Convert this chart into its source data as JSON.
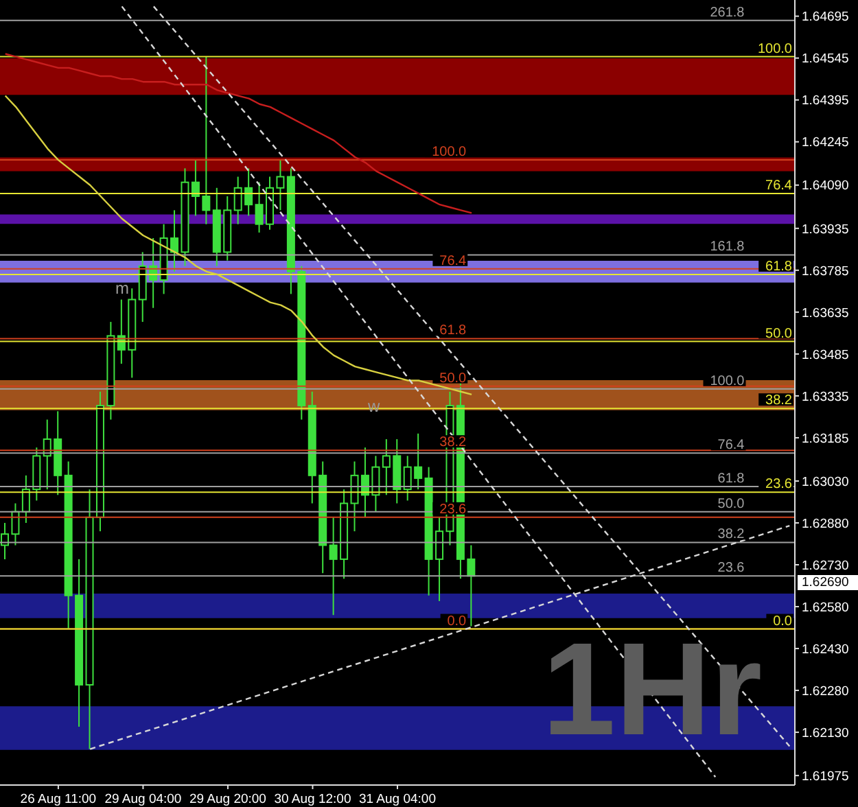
{
  "chart_data": {
    "type": "candlestick",
    "color": "#3ee03e",
    "categories": [
      null,
      null,
      null,
      null,
      null,
      "26 Aug 11:00",
      null,
      null,
      null,
      null,
      null,
      null,
      null,
      "29 Aug 04:00",
      null,
      null,
      null,
      null,
      null,
      null,
      null,
      "29 Aug 20:00",
      null,
      null,
      null,
      null,
      null,
      null,
      null,
      "30 Aug 12:00",
      null,
      null,
      null,
      null,
      null,
      null,
      null,
      "31 Aug 04:00",
      null,
      null,
      null,
      null,
      null,
      null,
      null,
      null,
      null,
      null,
      null,
      null,
      null,
      null,
      null,
      null,
      null,
      null,
      null,
      null,
      null,
      null,
      null,
      null,
      null,
      null,
      null,
      null,
      null,
      null,
      null,
      null,
      null,
      null,
      null,
      null,
      null
    ],
    "ohlc": [
      [
        1.628,
        1.6288,
        1.6275,
        1.6284
      ],
      [
        1.6284,
        1.6295,
        1.628,
        1.6292
      ],
      [
        1.6292,
        1.6305,
        1.6288,
        1.63
      ],
      [
        1.63,
        1.6315,
        1.6296,
        1.6312
      ],
      [
        1.6312,
        1.6325,
        1.63,
        1.6318
      ],
      [
        1.6318,
        1.6328,
        1.6298,
        1.6305
      ],
      [
        1.6305,
        1.631,
        1.625,
        1.6262
      ],
      [
        1.6262,
        1.6275,
        1.6215,
        1.623
      ],
      [
        1.623,
        1.63,
        1.6207,
        1.629
      ],
      [
        1.629,
        1.6335,
        1.6285,
        1.633
      ],
      [
        1.633,
        1.636,
        1.6325,
        1.6355
      ],
      [
        1.6355,
        1.6368,
        1.6345,
        1.635
      ],
      [
        1.635,
        1.6372,
        1.634,
        1.6368
      ],
      [
        1.6368,
        1.6385,
        1.636,
        1.638
      ],
      [
        1.638,
        1.639,
        1.6365,
        1.6375
      ],
      [
        1.6375,
        1.6395,
        1.637,
        1.639
      ],
      [
        1.639,
        1.64,
        1.6378,
        1.6385
      ],
      [
        1.6385,
        1.6415,
        1.638,
        1.641
      ],
      [
        1.641,
        1.6418,
        1.6398,
        1.6405
      ],
      [
        1.6405,
        1.6455,
        1.6395,
        1.64
      ],
      [
        1.64,
        1.6408,
        1.638,
        1.6385
      ],
      [
        1.6385,
        1.6405,
        1.6382,
        1.64
      ],
      [
        1.64,
        1.6412,
        1.6395,
        1.6408
      ],
      [
        1.6408,
        1.6415,
        1.6398,
        1.6402
      ],
      [
        1.6402,
        1.641,
        1.6392,
        1.6395
      ],
      [
        1.6395,
        1.6412,
        1.6393,
        1.6408
      ],
      [
        1.6408,
        1.6418,
        1.64,
        1.6412
      ],
      [
        1.6412,
        1.6415,
        1.637,
        1.6378
      ],
      [
        1.6378,
        1.638,
        1.6325,
        1.633
      ],
      [
        1.633,
        1.6335,
        1.6295,
        1.6305
      ],
      [
        1.6305,
        1.631,
        1.627,
        1.628
      ],
      [
        1.628,
        1.629,
        1.6255,
        1.6275
      ],
      [
        1.6275,
        1.63,
        1.6268,
        1.6295
      ],
      [
        1.6295,
        1.631,
        1.6285,
        1.6305
      ],
      [
        1.6305,
        1.6315,
        1.629,
        1.6298
      ],
      [
        1.6298,
        1.6312,
        1.6292,
        1.6308
      ],
      [
        1.6308,
        1.6318,
        1.6298,
        1.6312
      ],
      [
        1.6312,
        1.6318,
        1.6295,
        1.63
      ],
      [
        1.63,
        1.6312,
        1.6296,
        1.6308
      ],
      [
        1.6308,
        1.632,
        1.63,
        1.6304
      ],
      [
        1.6304,
        1.6308,
        1.6262,
        1.6275
      ],
      [
        1.6275,
        1.629,
        1.626,
        1.6285
      ],
      [
        1.6285,
        1.6335,
        1.628,
        1.633
      ],
      [
        1.633,
        1.6338,
        1.6268,
        1.6275
      ],
      [
        1.6275,
        1.628,
        1.6251,
        1.6269
      ],
      null,
      null,
      null,
      null,
      null,
      null,
      null,
      null,
      null,
      null,
      null,
      null,
      null,
      null,
      null,
      null,
      null,
      null,
      null,
      null,
      null,
      null,
      null,
      null,
      null,
      null,
      null,
      null,
      null,
      null
    ],
    "series": [
      {
        "type": "line",
        "color": "#c81e1e",
        "values": [
          1.6456,
          1.6455,
          1.6454,
          1.6453,
          1.6452,
          1.6451,
          1.6451,
          1.645,
          1.6449,
          1.6448,
          1.6448,
          1.6447,
          1.6447,
          1.6446,
          1.6446,
          1.6446,
          1.6445,
          1.6445,
          1.6445,
          1.6445,
          1.6443,
          1.6442,
          1.6441,
          1.644,
          1.6438,
          1.6437,
          1.6435,
          1.6433,
          1.6431,
          1.6429,
          1.6427,
          1.6425,
          1.6422,
          1.6419,
          1.6417,
          1.6414,
          1.6412,
          1.641,
          1.6408,
          1.6406,
          1.6404,
          1.6402,
          1.6401,
          1.64,
          1.6399,
          null,
          null,
          null,
          null,
          null,
          null,
          null,
          null,
          null,
          null,
          null,
          null,
          null,
          null,
          null,
          null,
          null,
          null,
          null,
          null,
          null,
          null,
          null,
          null,
          null,
          null,
          null,
          null,
          null,
          null
        ]
      },
      {
        "type": "line",
        "color": "#d8d040",
        "values": [
          1.6441,
          1.6437,
          1.6432,
          1.6427,
          1.6422,
          1.6418,
          1.6415,
          1.6412,
          1.6409,
          1.6405,
          1.6401,
          1.6397,
          1.6394,
          1.6391,
          1.6389,
          1.6387,
          1.6385,
          1.6383,
          1.638,
          1.6378,
          1.6377,
          1.6375,
          1.6373,
          1.6371,
          1.6369,
          1.6367,
          1.6366,
          1.6364,
          1.636,
          1.6355,
          1.6351,
          1.6348,
          1.6346,
          1.6344,
          1.6343,
          1.6342,
          1.6341,
          1.634,
          1.6339,
          1.6339,
          1.6338,
          1.6337,
          1.6336,
          1.6335,
          1.6334,
          null,
          null,
          null,
          null,
          null,
          null,
          null,
          null,
          null,
          null,
          null,
          null,
          null,
          null,
          null,
          null,
          null,
          null,
          null,
          null,
          null,
          null,
          null,
          null,
          null,
          null,
          null,
          null,
          null,
          null
        ]
      },
      {
        "type": "line",
        "color": "#d8d8d8",
        "line_style": "dashed",
        "values": [
          null,
          null,
          null,
          null,
          null,
          null,
          null,
          null,
          1.6207,
          null,
          null,
          null,
          null,
          null,
          null,
          null,
          null,
          null,
          null,
          null,
          null,
          null,
          null,
          null,
          null,
          null,
          null,
          null,
          null,
          null,
          null,
          null,
          null,
          null,
          null,
          null,
          null,
          null,
          null,
          null,
          null,
          null,
          null,
          null,
          null,
          null,
          null,
          null,
          null,
          null,
          null,
          null,
          null,
          null,
          null,
          null,
          null,
          null,
          null,
          null,
          null,
          null,
          null,
          null,
          null,
          null,
          null,
          null,
          null,
          null,
          null,
          null,
          null,
          null,
          1.6287
        ]
      },
      {
        "type": "line",
        "color": "#d8d8d8",
        "line_style": "dashed",
        "values": [
          null,
          null,
          null,
          null,
          null,
          null,
          null,
          null,
          null,
          null,
          null,
          1.6473,
          null,
          null,
          null,
          null,
          null,
          null,
          null,
          null,
          null,
          null,
          null,
          null,
          null,
          null,
          null,
          null,
          null,
          null,
          null,
          null,
          null,
          null,
          null,
          null,
          null,
          null,
          null,
          null,
          null,
          null,
          null,
          null,
          null,
          null,
          null,
          null,
          null,
          null,
          null,
          null,
          null,
          null,
          null,
          null,
          null,
          null,
          null,
          null,
          null,
          null,
          null,
          null,
          null,
          null,
          null,
          1.6197,
          null,
          null,
          null,
          null,
          null,
          null,
          null
        ]
      },
      {
        "type": "line",
        "color": "#d8d8d8",
        "line_style": "dashed",
        "values": [
          null,
          null,
          null,
          null,
          null,
          null,
          null,
          null,
          null,
          null,
          null,
          null,
          null,
          null,
          1.6473,
          null,
          null,
          null,
          null,
          null,
          null,
          null,
          null,
          null,
          null,
          null,
          null,
          null,
          null,
          null,
          null,
          null,
          null,
          null,
          null,
          null,
          null,
          null,
          null,
          null,
          null,
          null,
          null,
          null,
          null,
          null,
          null,
          null,
          null,
          null,
          null,
          null,
          null,
          null,
          null,
          null,
          null,
          null,
          null,
          null,
          null,
          null,
          null,
          null,
          null,
          null,
          null,
          null,
          null,
          null,
          null,
          null,
          null,
          null,
          1.6208
        ]
      }
    ],
    "ylim": [
      1.61941,
      1.64753
    ],
    "yticks": [
      1.64695,
      1.64545,
      1.64395,
      1.64245,
      {
        "value": 1.6409,
        "label": "1.64090"
      },
      1.63935,
      1.63785,
      1.63635,
      1.63485,
      1.63335,
      1.63185,
      {
        "value": 1.6303,
        "label": "1.63030"
      },
      {
        "value": 1.6288,
        "label": "1.62880"
      },
      {
        "value": 1.6273,
        "label": "1.62730"
      },
      {
        "value": 1.6258,
        "label": "1.62580"
      },
      {
        "value": 1.6243,
        "label": "1.62430"
      },
      {
        "value": 1.6228,
        "label": "1.62280"
      },
      {
        "value": 1.6213,
        "label": "1.62130"
      },
      1.61975
    ],
    "bands": [
      {
        "axis": "y",
        "from": 1.64413,
        "to": 1.64544,
        "color": "#8b0000"
      },
      {
        "axis": "y",
        "from": 1.6414,
        "to": 1.64189,
        "color": "#8b0000"
      },
      {
        "axis": "y",
        "from": 1.63951,
        "to": 1.63985,
        "color": "#5b12a8"
      },
      {
        "axis": "y",
        "from": 1.63741,
        "to": 1.63819,
        "color": "#7d6fe0"
      },
      {
        "axis": "y",
        "from": 1.63337,
        "to": 1.63391,
        "color": "#a0521c"
      },
      {
        "axis": "y",
        "from": 1.63284,
        "to": 1.63337,
        "color": "#a0521c"
      },
      {
        "axis": "y",
        "from": 1.62539,
        "to": 1.62627,
        "color": "#1c1c8c"
      },
      {
        "axis": "y",
        "from": 1.62067,
        "to": 1.62223,
        "color": "#1c1c8c"
      }
    ],
    "ref_lines": [
      {
        "axis": "y",
        "value": 1.6468,
        "color": "#a0a0a0"
      },
      {
        "axis": "y",
        "value": 1.6455,
        "color": "#e6e632"
      },
      {
        "axis": "y",
        "value": 1.6418,
        "color": "#d2411e"
      },
      {
        "axis": "y",
        "value": 1.6406,
        "color": "#e6e632"
      },
      {
        "axis": "y",
        "value": 1.6384,
        "color": "#a0a0a0"
      },
      {
        "axis": "y",
        "value": 1.6379,
        "color": "#d2411e"
      },
      {
        "axis": "y",
        "value": 1.6377,
        "color": "#e6e632"
      },
      {
        "axis": "y",
        "value": 1.6354,
        "color": "#d2411e"
      },
      {
        "axis": "y",
        "value": 1.6353,
        "color": "#e6e632"
      },
      {
        "axis": "y",
        "value": 1.6337,
        "color": "#d2411e"
      },
      {
        "axis": "y",
        "value": 1.6336,
        "color": "#a0a0a0"
      },
      {
        "axis": "y",
        "value": 1.6329,
        "color": "#e6e632"
      },
      {
        "axis": "y",
        "value": 1.6314,
        "color": "#d2411e"
      },
      {
        "axis": "y",
        "value": 1.6313,
        "color": "#a0a0a0"
      },
      {
        "axis": "y",
        "value": 1.6301,
        "color": "#a0a0a0"
      },
      {
        "axis": "y",
        "value": 1.6299,
        "color": "#e6e632"
      },
      {
        "axis": "y",
        "value": 1.6292,
        "color": "#a0a0a0"
      },
      {
        "axis": "y",
        "value": 1.629,
        "color": "#d2411e"
      },
      {
        "axis": "y",
        "value": 1.6281,
        "color": "#a0a0a0"
      },
      {
        "axis": "y",
        "value": 1.6269,
        "color": "#a0a0a0"
      },
      {
        "axis": "y",
        "value": 1.625,
        "color": "#d2411e"
      },
      {
        "axis": "y",
        "value": 1.625,
        "color": "#e6e632"
      }
    ],
    "annotations": [
      {
        "text": "261.8",
        "y": 1.6468
      },
      {
        "text": "100.0",
        "y": 1.6455
      },
      {
        "text": "100.0",
        "y": 1.6418
      },
      {
        "text": "76.4",
        "y": 1.6406
      },
      {
        "text": "161.8",
        "y": 1.6384
      },
      {
        "text": "76.4",
        "y": 1.6379
      },
      {
        "text": "61.8",
        "y": 1.6377
      },
      {
        "text": "61.8",
        "y": 1.6354
      },
      {
        "text": "50.0",
        "y": 1.6353
      },
      {
        "text": "50.0",
        "y": 1.6337
      },
      {
        "text": "100.0",
        "y": 1.6336
      },
      {
        "text": "38.2",
        "y": 1.6329
      },
      {
        "text": "38.2",
        "y": 1.6314
      },
      {
        "text": "76.4",
        "y": 1.6313
      },
      {
        "text": "61.8",
        "y": 1.6301
      },
      {
        "text": "23.6",
        "y": 1.6299
      },
      {
        "text": "50.0",
        "y": 1.6292
      },
      {
        "text": "23.6",
        "y": 1.629
      },
      {
        "text": "38.2",
        "y": 1.6281
      },
      {
        "text": "23.6",
        "y": 1.6269
      },
      {
        "text": "0.0",
        "y": 1.625
      },
      {
        "text": "0.0",
        "y": 1.625
      },
      "1Hr",
      "m",
      "w",
      "1.62690"
    ]
  }
}
